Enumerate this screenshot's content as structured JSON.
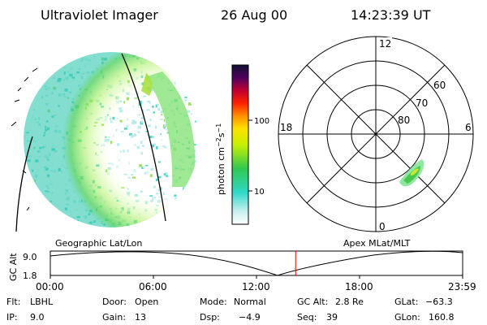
{
  "header": {
    "instrument": "Ultraviolet Imager",
    "date": "26 Aug 00",
    "time": "14:23:39 UT"
  },
  "colorbar": {
    "unit_label": "photon cm",
    "unit_sup1": "−2",
    "unit_mid": "s",
    "unit_sup2": "−1",
    "ticks": [
      "100",
      "10"
    ]
  },
  "polar_plot": {
    "mlt_labels": {
      "top": "12",
      "left": "18",
      "right": "6",
      "bottom": "0"
    },
    "lat_labels": [
      "60",
      "70",
      "80"
    ]
  },
  "panel_labels": {
    "left": "Geographic Lat/Lon",
    "right": "Apex MLat/MLT"
  },
  "timeline": {
    "axis_label": "GC Alt",
    "y_ticks": [
      "9.0",
      "1.8"
    ],
    "x_ticks": [
      "00:00",
      "06:00",
      "12:00",
      "18:00",
      "23:59"
    ],
    "current_time_fraction": 0.595,
    "marker_color": "#e00000"
  },
  "info": {
    "flt": {
      "label": "Flt:",
      "value": "LBHL"
    },
    "ip": {
      "label": "IP:",
      "value": "9.0"
    },
    "door": {
      "label": "Door:",
      "value": "Open"
    },
    "gain": {
      "label": "Gain:",
      "value": "13"
    },
    "mode": {
      "label": "Mode:",
      "value": "Normal"
    },
    "dsp": {
      "label": "Dsp:",
      "value": "−4.9"
    },
    "gcalt": {
      "label": "GC Alt:",
      "value": "2.8 Re"
    },
    "seq": {
      "label": "Seq:",
      "value": "39"
    },
    "glat": {
      "label": "GLat:",
      "value": "−63.3"
    },
    "glon": {
      "label": "GLon:",
      "value": "160.8"
    }
  }
}
